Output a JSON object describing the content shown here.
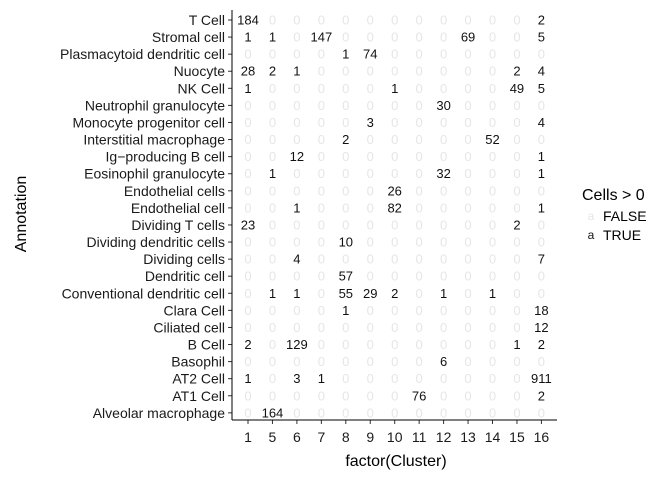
{
  "chart_data": {
    "type": "table",
    "xlabel": "factor(Cluster)",
    "ylabel": "Annotation",
    "x": [
      "1",
      "5",
      "6",
      "7",
      "8",
      "9",
      "10",
      "11",
      "12",
      "13",
      "14",
      "15",
      "16"
    ],
    "rows": [
      {
        "label": "T Cell",
        "values": [
          184,
          0,
          0,
          0,
          0,
          0,
          0,
          0,
          0,
          0,
          0,
          0,
          2
        ]
      },
      {
        "label": "Stromal cell",
        "values": [
          1,
          1,
          0,
          147,
          0,
          0,
          0,
          0,
          0,
          69,
          0,
          0,
          5
        ]
      },
      {
        "label": "Plasmacytoid dendritic cell",
        "values": [
          0,
          0,
          0,
          0,
          1,
          74,
          0,
          0,
          0,
          0,
          0,
          0,
          0
        ]
      },
      {
        "label": "Nuocyte",
        "values": [
          28,
          2,
          1,
          0,
          0,
          0,
          0,
          0,
          0,
          0,
          0,
          2,
          4
        ]
      },
      {
        "label": "NK Cell",
        "values": [
          1,
          0,
          0,
          0,
          0,
          0,
          1,
          0,
          0,
          0,
          0,
          49,
          5
        ]
      },
      {
        "label": "Neutrophil granulocyte",
        "values": [
          0,
          0,
          0,
          0,
          0,
          0,
          0,
          0,
          30,
          0,
          0,
          0,
          0
        ]
      },
      {
        "label": "Monocyte progenitor cell",
        "values": [
          0,
          0,
          0,
          0,
          0,
          3,
          0,
          0,
          0,
          0,
          0,
          0,
          4
        ]
      },
      {
        "label": "Interstitial macrophage",
        "values": [
          0,
          0,
          0,
          0,
          2,
          0,
          0,
          0,
          0,
          0,
          52,
          0,
          0
        ]
      },
      {
        "label": "Ig−producing B cell",
        "values": [
          0,
          0,
          12,
          0,
          0,
          0,
          0,
          0,
          0,
          0,
          0,
          0,
          1
        ]
      },
      {
        "label": "Eosinophil granulocyte",
        "values": [
          0,
          1,
          0,
          0,
          0,
          0,
          0,
          0,
          32,
          0,
          0,
          0,
          1
        ]
      },
      {
        "label": "Endothelial cells",
        "values": [
          0,
          0,
          0,
          0,
          0,
          0,
          26,
          0,
          0,
          0,
          0,
          0,
          0
        ]
      },
      {
        "label": "Endothelial cell",
        "values": [
          0,
          0,
          1,
          0,
          0,
          0,
          82,
          0,
          0,
          0,
          0,
          0,
          1
        ]
      },
      {
        "label": "Dividing T cells",
        "values": [
          23,
          0,
          0,
          0,
          0,
          0,
          0,
          0,
          0,
          0,
          0,
          2,
          0
        ]
      },
      {
        "label": "Dividing dendritic cells",
        "values": [
          0,
          0,
          0,
          0,
          10,
          0,
          0,
          0,
          0,
          0,
          0,
          0,
          0
        ]
      },
      {
        "label": "Dividing cells",
        "values": [
          0,
          0,
          4,
          0,
          0,
          0,
          0,
          0,
          0,
          0,
          0,
          0,
          7
        ]
      },
      {
        "label": "Dendritic cell",
        "values": [
          0,
          0,
          0,
          0,
          57,
          0,
          0,
          0,
          0,
          0,
          0,
          0,
          0
        ]
      },
      {
        "label": "Conventional dendritic cell",
        "values": [
          0,
          1,
          1,
          0,
          55,
          29,
          2,
          0,
          1,
          0,
          1,
          0,
          0
        ]
      },
      {
        "label": "Clara Cell",
        "values": [
          0,
          0,
          0,
          0,
          1,
          0,
          0,
          0,
          0,
          0,
          0,
          0,
          18
        ]
      },
      {
        "label": "Ciliated cell",
        "values": [
          0,
          0,
          0,
          0,
          0,
          0,
          0,
          0,
          0,
          0,
          0,
          0,
          12
        ]
      },
      {
        "label": "B Cell",
        "values": [
          2,
          0,
          129,
          0,
          0,
          0,
          0,
          0,
          0,
          0,
          0,
          1,
          2
        ]
      },
      {
        "label": "Basophil",
        "values": [
          0,
          0,
          0,
          0,
          0,
          0,
          0,
          0,
          6,
          0,
          0,
          0,
          0
        ]
      },
      {
        "label": "AT2 Cell",
        "values": [
          1,
          0,
          3,
          1,
          0,
          0,
          0,
          0,
          0,
          0,
          0,
          0,
          911
        ]
      },
      {
        "label": "AT1 Cell",
        "values": [
          0,
          0,
          0,
          0,
          0,
          0,
          0,
          76,
          0,
          0,
          0,
          0,
          2
        ]
      },
      {
        "label": "Alveolar macrophage",
        "values": [
          0,
          164,
          0,
          0,
          0,
          0,
          0,
          0,
          0,
          0,
          0,
          0,
          0
        ]
      }
    ],
    "legend": {
      "title": "Cells > 0",
      "position": "right",
      "glyph": "a",
      "entries": [
        {
          "label": "FALSE",
          "color": "#e6e6e6"
        },
        {
          "label": "TRUE",
          "color": "#111111"
        }
      ]
    },
    "grid": false
  }
}
